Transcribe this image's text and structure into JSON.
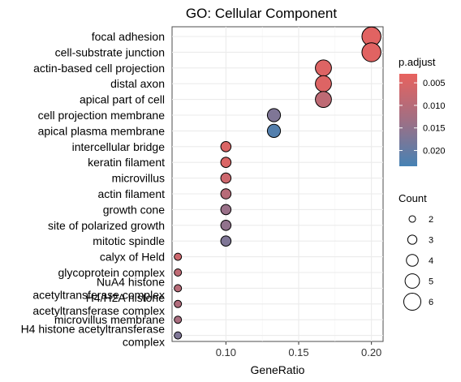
{
  "chart_data": {
    "type": "scatter",
    "title": "GO: Cellular Component",
    "xlabel": "GeneRatio",
    "ylabel": "",
    "xlim": [
      0.063,
      0.208
    ],
    "x_ticks": [
      "0.10",
      "0.15",
      "0.20"
    ],
    "x_tick_values": [
      0.1,
      0.15,
      0.2
    ],
    "grid": true,
    "categories": [
      {
        "label": "focal adhesion",
        "x": 0.2,
        "count": 6,
        "padj": 0.004
      },
      {
        "label": "cell-substrate junction",
        "x": 0.2,
        "count": 6,
        "padj": 0.004
      },
      {
        "label": "actin-based cell projection",
        "x": 0.167,
        "count": 5,
        "padj": 0.0045
      },
      {
        "label": "distal axon",
        "x": 0.167,
        "count": 5,
        "padj": 0.0045
      },
      {
        "label": "apical part of cell",
        "x": 0.167,
        "count": 5,
        "padj": 0.009
      },
      {
        "label": "cell projection membrane",
        "x": 0.133,
        "count": 4,
        "padj": 0.017
      },
      {
        "label": "apical plasma membrane",
        "x": 0.133,
        "count": 4,
        "padj": 0.022
      },
      {
        "label": "intercellular bridge",
        "x": 0.1,
        "count": 3,
        "padj": 0.005
      },
      {
        "label": "keratin filament",
        "x": 0.1,
        "count": 3,
        "padj": 0.005
      },
      {
        "label": "microvillus",
        "x": 0.1,
        "count": 3,
        "padj": 0.007
      },
      {
        "label": "actin filament",
        "x": 0.1,
        "count": 3,
        "padj": 0.01
      },
      {
        "label": "growth cone",
        "x": 0.1,
        "count": 3,
        "padj": 0.014
      },
      {
        "label": "site of polarized growth",
        "x": 0.1,
        "count": 3,
        "padj": 0.015
      },
      {
        "label": "mitotic spindle",
        "x": 0.1,
        "count": 3,
        "padj": 0.017
      },
      {
        "label": "calyx of Held",
        "x": 0.067,
        "count": 2,
        "padj": 0.007
      },
      {
        "label": "glycoprotein complex",
        "x": 0.067,
        "count": 2,
        "padj": 0.009
      },
      {
        "label": "NuA4 histone\nacetyltransferase complex",
        "x": 0.067,
        "count": 2,
        "padj": 0.01
      },
      {
        "label": "H4/H2A histone\nacetyltransferase complex",
        "x": 0.067,
        "count": 2,
        "padj": 0.011
      },
      {
        "label": "microvillus membrane",
        "x": 0.067,
        "count": 2,
        "padj": 0.012
      },
      {
        "label": "H4 histone acetyltransferase\ncomplex",
        "x": 0.067,
        "count": 2,
        "padj": 0.017
      }
    ],
    "legend_color": {
      "title": "p.adjust",
      "placement": "right-top",
      "ticks": [
        "0.005",
        "0.010",
        "0.015",
        "0.020"
      ],
      "tick_values": [
        0.005,
        0.01,
        0.015,
        0.02
      ],
      "range": [
        0.003,
        0.0235
      ],
      "low_color": "#e8625e",
      "high_color": "#4682b4"
    },
    "legend_size": {
      "title": "Count",
      "placement": "right-bottom",
      "ticks": [
        "2",
        "3",
        "4",
        "5",
        "6"
      ],
      "tick_values": [
        2,
        3,
        4,
        5,
        6
      ]
    }
  }
}
